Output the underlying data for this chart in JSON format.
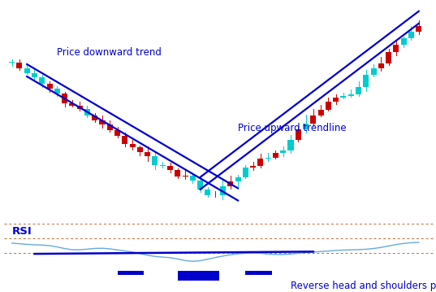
{
  "bg_color": "#ffffff",
  "price_downward_trend_label": "Price downward trend",
  "price_upward_trend_label": "Price upward trendline",
  "rsi_label": "RSI",
  "reverse_hs_label": "Reverse head and shoulders pattern",
  "trend_line_color": "#0000cc",
  "candle_bull_color": "#00cccc",
  "candle_bear_color": "#cc0000",
  "rsi_line_color": "#66aadd",
  "rsi_hline_color": "#cc6633",
  "rsi_trendline_color": "#0000cc",
  "rsi_bar_color": "#0000cc",
  "label_color": "#0000cc",
  "n_candles": 55
}
